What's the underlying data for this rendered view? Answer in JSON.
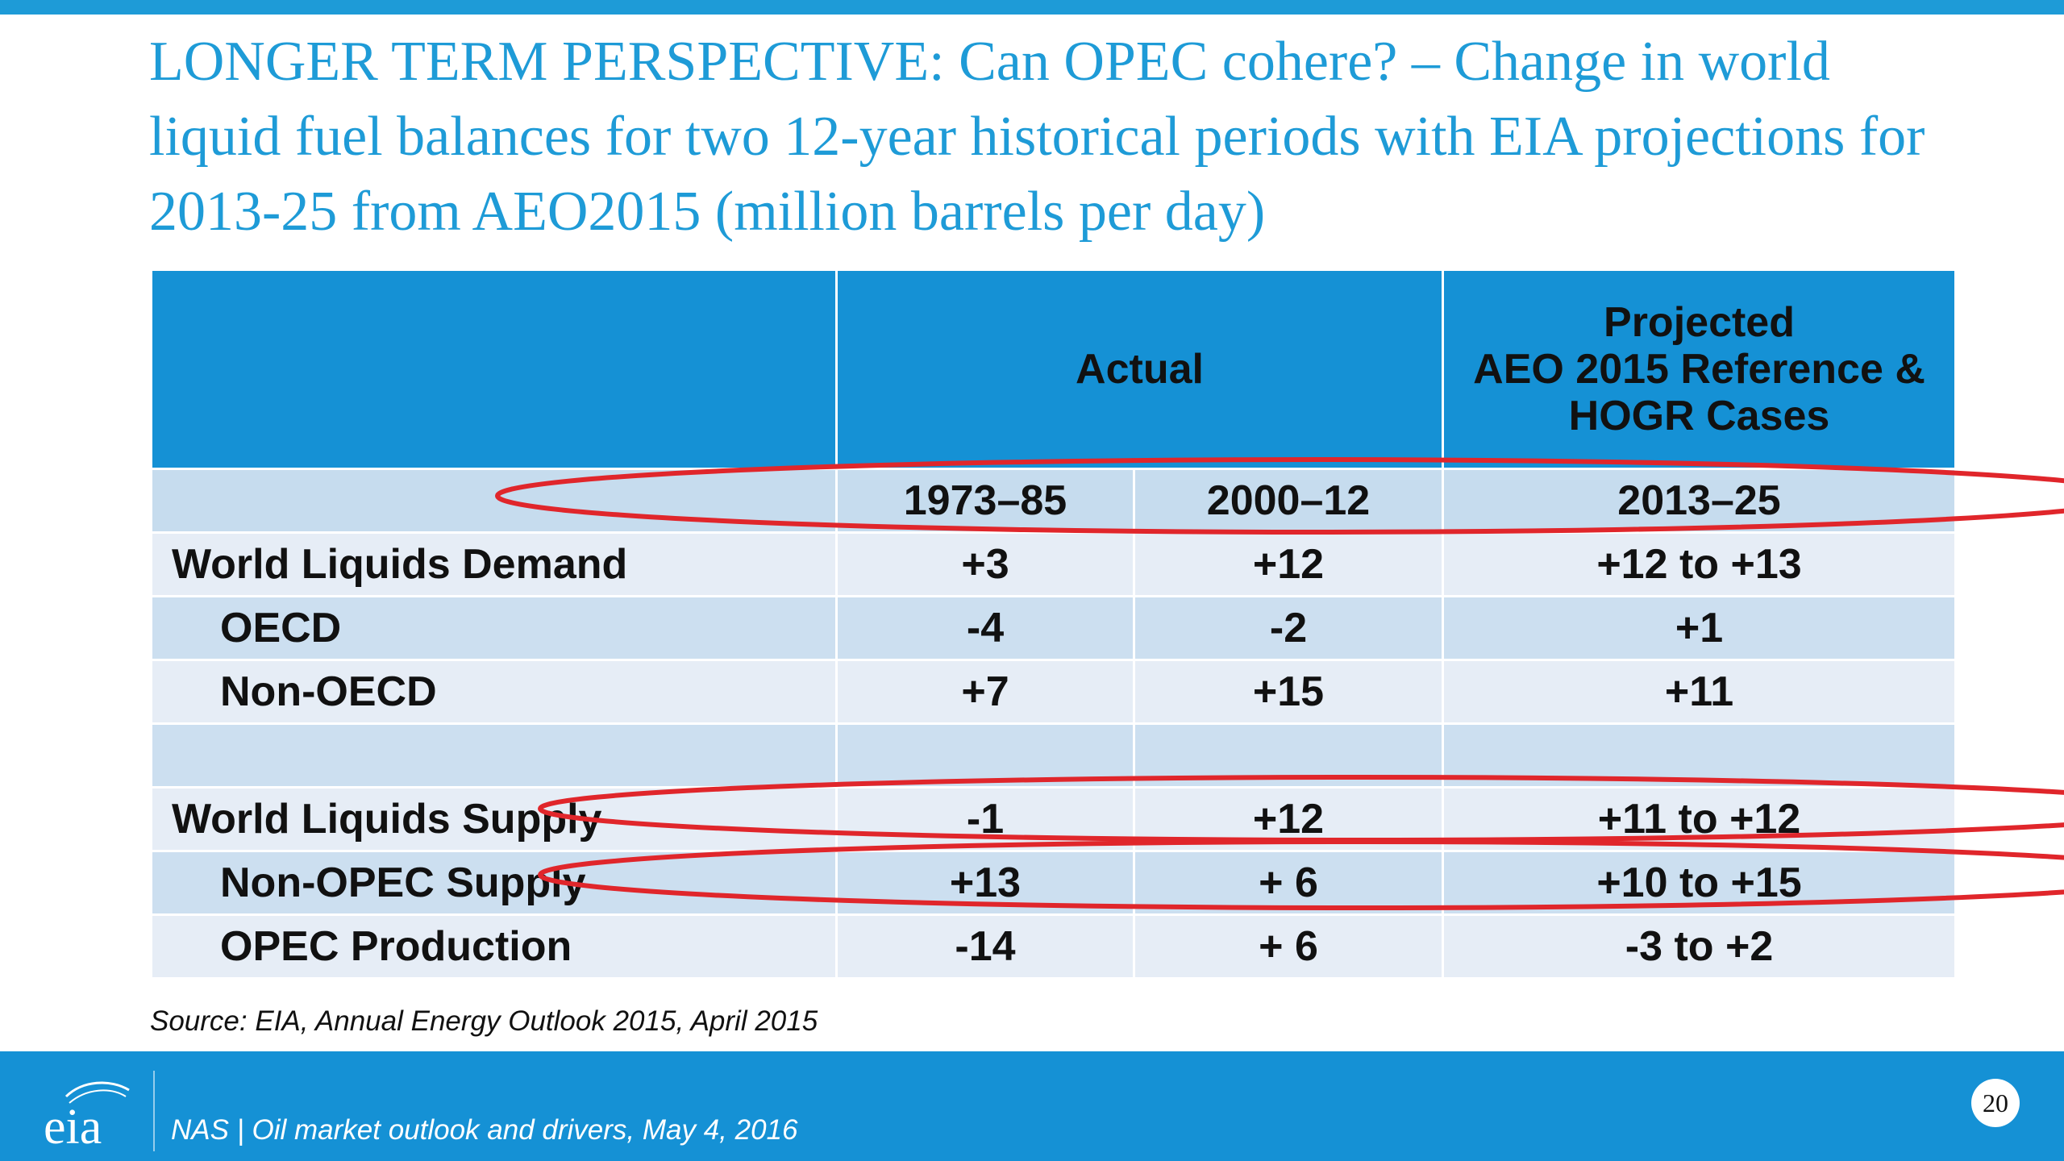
{
  "title": "LONGER TERM PERSPECTIVE:  Can OPEC cohere? –  Change in world liquid fuel balances for two 12-year historical periods with EIA projections for 2013-25 from AEO2015 (million barrels per day)",
  "table": {
    "header_actual": "Actual",
    "header_projected_lines": [
      "Projected",
      "AEO 2015 Reference &",
      "HOGR Cases"
    ],
    "periods": [
      "1973–85",
      "2000–12",
      "2013–25"
    ],
    "rows": [
      {
        "label": "World Liquids Demand",
        "values": [
          "+3",
          "+12",
          "+12 to +13"
        ]
      },
      {
        "label": "OECD",
        "values": [
          "-4",
          "-2",
          "+1"
        ]
      },
      {
        "label": "Non-OECD",
        "values": [
          "+7",
          "+15",
          "+11"
        ]
      },
      {
        "label": "",
        "values": [
          "",
          "",
          ""
        ]
      },
      {
        "label": "World Liquids Supply",
        "values": [
          "-1",
          "+12",
          "+11 to +12"
        ]
      },
      {
        "label": "Non-OPEC Supply",
        "values": [
          "+13",
          "+ 6",
          "+10 to +15"
        ]
      },
      {
        "label": "OPEC Production",
        "values": [
          "-14",
          "+ 6",
          "-3 to +2"
        ]
      }
    ]
  },
  "source": "Source: EIA, Annual Energy Outlook 2015, April 2015",
  "footer": {
    "logo_text": "eia",
    "text": "NAS | Oil market outlook and drivers, May 4, 2016",
    "page_number": "20"
  },
  "colors": {
    "accent": "#1e9bd7",
    "header_fill": "#1591d5",
    "annotation": "#e0262b"
  }
}
